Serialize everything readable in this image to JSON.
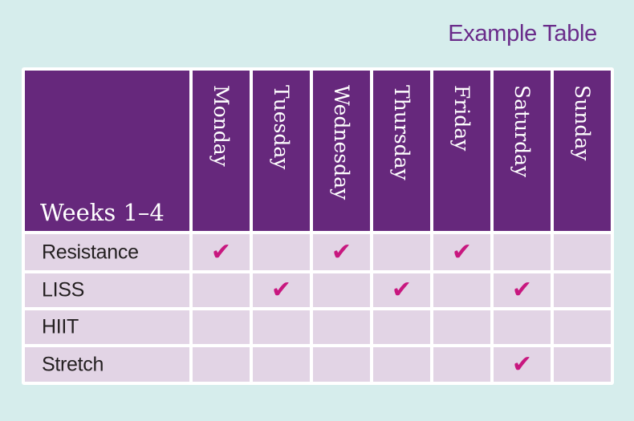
{
  "caption": "Example Table",
  "table": {
    "corner_label": "Weeks 1–4",
    "days": [
      "Monday",
      "Tuesday",
      "Wednesday",
      "Thursday",
      "Friday",
      "Saturday",
      "Sunday"
    ],
    "rows": [
      {
        "label": "Resistance",
        "checks": [
          true,
          false,
          true,
          false,
          true,
          false,
          false
        ]
      },
      {
        "label": "LISS",
        "checks": [
          false,
          true,
          false,
          true,
          false,
          true,
          false
        ]
      },
      {
        "label": "HIIT",
        "checks": [
          false,
          false,
          false,
          false,
          false,
          false,
          false
        ]
      },
      {
        "label": "Stretch",
        "checks": [
          false,
          false,
          false,
          false,
          false,
          true,
          false
        ]
      }
    ],
    "check_glyph": "✔"
  },
  "colors": {
    "background": "#d6edec",
    "header": "#66287c",
    "body_cell": "#e2d4e5",
    "check": "#c8177f",
    "caption": "#6a2c8a"
  }
}
